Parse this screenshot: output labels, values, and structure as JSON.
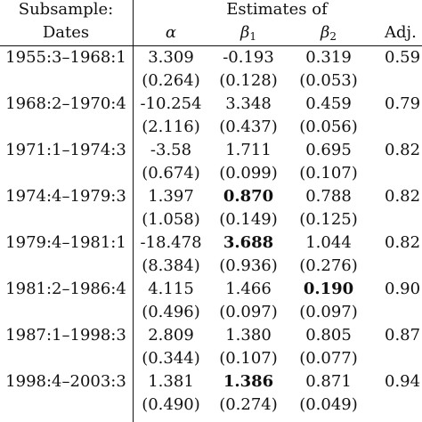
{
  "header": {
    "group_label_line1": "Subsample:",
    "group_label_line2": "Dates",
    "estimates_label": "Estimates of",
    "col_alpha": "α",
    "col_beta": "β",
    "col_beta1_sub": "1",
    "col_beta2_sub": "2",
    "col_adj": "Adj."
  },
  "rows": [
    {
      "date": "1955:3–1968:1",
      "alpha": "3.309",
      "b1": "-0.193",
      "b2": "0.319",
      "adj": "0.59",
      "se_alpha": "(0.264)",
      "se_b1": "(0.128)",
      "se_b2": "(0.053)"
    },
    {
      "date": "1968:2–1970:4",
      "alpha": "-10.254",
      "b1": "3.348",
      "b2": "0.459",
      "adj": "0.79",
      "se_alpha": "(2.116)",
      "se_b1": "(0.437)",
      "se_b2": "(0.056)"
    },
    {
      "date": "1971:1–1974:3",
      "alpha": "-3.58",
      "b1": "1.711",
      "b2": "0.695",
      "adj": "0.82",
      "se_alpha": "(0.674)",
      "se_b1": "(0.099)",
      "se_b2": "(0.107)"
    },
    {
      "date": "1974:4–1979:3",
      "alpha": "1.397",
      "b1": "0.870",
      "b2": "0.788",
      "adj": "0.82",
      "se_alpha": "(1.058)",
      "se_b1": "(0.149)",
      "se_b2": "(0.125)",
      "bold": "b1"
    },
    {
      "date": "1979:4–1981:1",
      "alpha": "-18.478",
      "b1": "3.688",
      "b2": "1.044",
      "adj": "0.82",
      "se_alpha": "(8.384)",
      "se_b1": "(0.936)",
      "se_b2": "(0.276)",
      "bold": "b1"
    },
    {
      "date": "1981:2–1986:4",
      "alpha": "4.115",
      "b1": "1.466",
      "b2": "0.190",
      "adj": "0.90",
      "se_alpha": "(0.496)",
      "se_b1": "(0.097)",
      "se_b2": "(0.097)",
      "bold": "b2"
    },
    {
      "date": "1987:1–1998:3",
      "alpha": "2.809",
      "b1": "1.380",
      "b2": "0.805",
      "adj": "0.87",
      "se_alpha": "(0.344)",
      "se_b1": "(0.107)",
      "se_b2": "(0.077)"
    },
    {
      "date": "1998:4–2003:3",
      "alpha": "1.381",
      "b1": "1.386",
      "b2": "0.871",
      "adj": "0.94",
      "se_alpha": "(0.490)",
      "se_b1": "(0.274)",
      "se_b2": "(0.049)",
      "bold": "b1"
    }
  ]
}
